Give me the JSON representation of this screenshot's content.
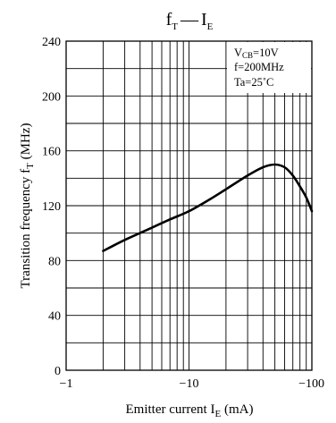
{
  "chart_data": {
    "type": "line",
    "title": {
      "main": "f",
      "main_sub": "T",
      "dash": "—",
      "second": "I",
      "second_sub": "E"
    },
    "xlabel": {
      "text": "Emitter current  I",
      "sub": "E",
      "unit": "  (mA)"
    },
    "ylabel": {
      "text": "Transition frequency  f",
      "sub": "T",
      "unit": "  (MHz)"
    },
    "x_scale": "log",
    "x_ticks": [
      {
        "value": -1,
        "label": "−1"
      },
      {
        "value": -10,
        "label": "−10"
      },
      {
        "value": -100,
        "label": "−100"
      }
    ],
    "y_ticks": [
      0,
      40,
      80,
      120,
      160,
      200,
      240
    ],
    "xlim": [
      -1,
      -100
    ],
    "ylim": [
      0,
      240
    ],
    "grid": true,
    "conditions": {
      "vcb_prefix": "V",
      "vcb_sub": "CB",
      "vcb_value": "=10V",
      "freq": "f=200MHz",
      "ta": "Ta=25˚C"
    },
    "series": [
      {
        "x": [
          -2,
          -3,
          -5,
          -7,
          -10,
          -15,
          -20,
          -30,
          -40,
          -50,
          -60,
          -70,
          -80,
          -90,
          -100
        ],
        "y": [
          87,
          95,
          104,
          110,
          116,
          125,
          132,
          142,
          148,
          150,
          148,
          142,
          134,
          126,
          116
        ]
      }
    ],
    "line_color": "#000000"
  }
}
